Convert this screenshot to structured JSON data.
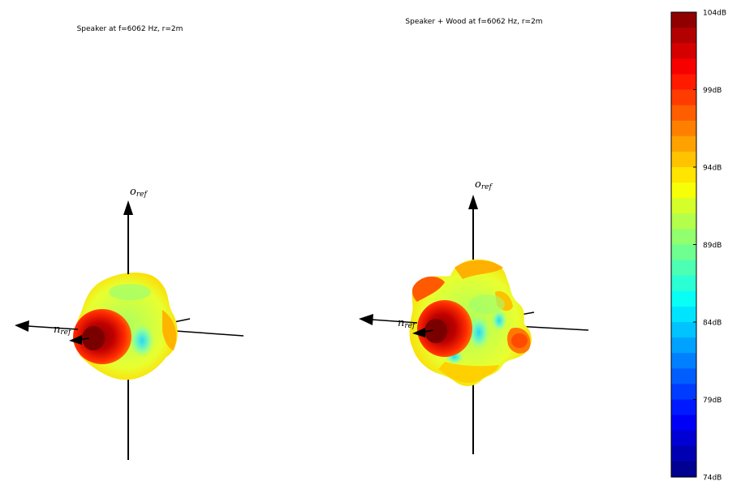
{
  "chart_data": [
    {
      "type": "3d-directivity-balloon",
      "title": "Speaker at f=6062 Hz, r=2m",
      "axis_labels": [
        "o_ref",
        "n_ref"
      ],
      "axis_label_text": {
        "o": "o",
        "o_sub": "ref",
        "n": "n",
        "n_sub": "ref"
      },
      "colormap": "jet",
      "peak_level_dB": 104,
      "dominant_range_dB": [
        88,
        95
      ]
    },
    {
      "type": "3d-directivity-balloon",
      "title": "Speaker + Wood at f=6062 Hz, r=2m",
      "axis_labels": [
        "o_ref",
        "n_ref"
      ],
      "axis_label_text": {
        "o": "o",
        "o_sub": "ref",
        "n": "n",
        "n_sub": "ref"
      },
      "colormap": "jet",
      "peak_level_dB": 104,
      "dominant_range_dB": [
        85,
        97
      ]
    }
  ],
  "colorbar": {
    "min_dB": 74,
    "max_dB": 104,
    "levels": 30,
    "ticks": [
      "104dB",
      "99dB",
      "94dB",
      "89dB",
      "84dB",
      "79dB",
      "74dB"
    ],
    "tick_values": [
      104,
      99,
      94,
      89,
      84,
      79,
      74
    ]
  }
}
